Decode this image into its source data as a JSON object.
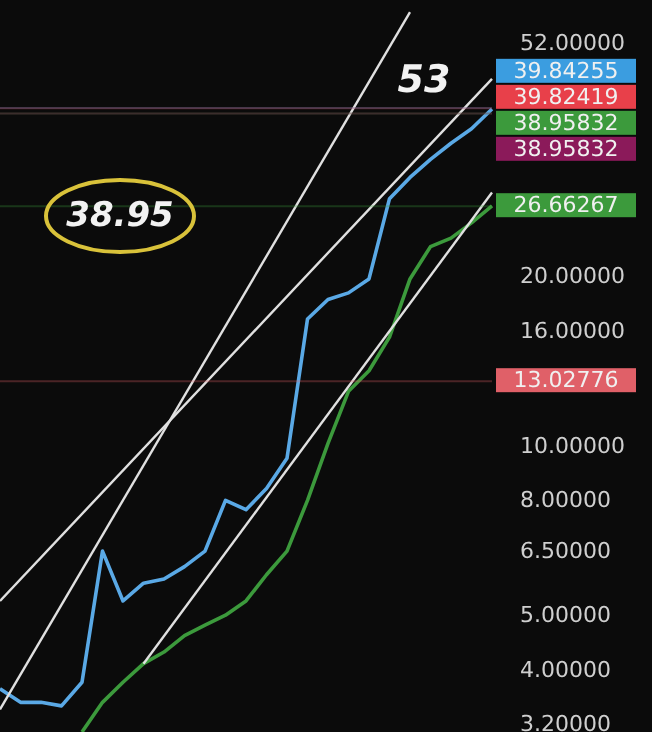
{
  "chart_data": {
    "type": "line",
    "categories": [
      null,
      null,
      null,
      null,
      null,
      null,
      null,
      null,
      null,
      null,
      null,
      null,
      null,
      null,
      null,
      null,
      null,
      null,
      null,
      null,
      null,
      null,
      null,
      null,
      null
    ],
    "series": [
      {
        "color": "#5aa9e6",
        "values": [
          3.7,
          3.5,
          3.5,
          3.45,
          3.8,
          6.5,
          5.3,
          5.7,
          5.8,
          6.1,
          6.5,
          8.0,
          7.7,
          8.4,
          9.5,
          16.8,
          18.2,
          18.7,
          19.8,
          27.5,
          30,
          32.3,
          34.5,
          36.6,
          39.7
        ]
      },
      {
        "color": "#3c9a3c",
        "values": [
          null,
          null,
          null,
          null,
          3.1,
          3.5,
          3.8,
          4.1,
          4.3,
          4.6,
          4.8,
          5.0,
          5.3,
          5.9,
          6.5,
          8.0,
          10.1,
          12.5,
          13.6,
          15.6,
          19.8,
          22.6,
          23.4,
          24.9,
          26.7
        ]
      },
      {
        "color": "#e0e0e0",
        "values": [
          3.4,
          null,
          null,
          null,
          null,
          null,
          null,
          null,
          null,
          null,
          null,
          null,
          null,
          null,
          null,
          null,
          null,
          null,
          null,
          null,
          59,
          null,
          null,
          null,
          null
        ]
      },
      {
        "color": "#e0e0e0",
        "values": [
          null,
          null,
          null,
          null,
          null,
          null,
          null,
          4.1,
          null,
          null,
          null,
          null,
          null,
          null,
          null,
          null,
          null,
          null,
          null,
          null,
          null,
          null,
          null,
          null,
          28.2
        ]
      },
      {
        "color": "#e0e0e0",
        "values": [
          5.3,
          null,
          null,
          null,
          null,
          null,
          null,
          null,
          null,
          null,
          null,
          null,
          null,
          null,
          null,
          null,
          null,
          null,
          null,
          null,
          null,
          null,
          null,
          null,
          44.9
        ]
      }
    ],
    "log": "y",
    "ylim": [
      3.1,
      62
    ],
    "yticks": [
      {
        "value": 3.2,
        "label": "3.20000"
      },
      {
        "value": 4,
        "label": "4.00000"
      },
      {
        "value": 5,
        "label": "5.00000"
      },
      {
        "value": 6.5,
        "label": "6.50000"
      },
      {
        "value": 8,
        "label": "8.00000"
      },
      {
        "value": 10,
        "label": "10.00000"
      },
      {
        "value": 16,
        "label": "16.00000"
      },
      {
        "value": 20,
        "label": "20.00000"
      },
      {
        "value": 52,
        "label": "52.00000"
      }
    ],
    "tick_labels": "y",
    "marker": "none",
    "line_style": "solid",
    "ref_lines": [
      {
        "axis": "y",
        "value": 39.84255,
        "label": "39.84255",
        "color": "#3b9de0"
      },
      {
        "axis": "y",
        "value": 39.82419,
        "label": "39.82419",
        "color": "#e8404a"
      },
      {
        "axis": "y",
        "value": 38.95832,
        "label": "38.95832",
        "color": "#3c9a3c"
      },
      {
        "axis": "y",
        "value": 38.95832,
        "label": "38.95832",
        "color": "#8b1a5a"
      },
      {
        "axis": "y",
        "value": 26.66267,
        "label": "26.66267",
        "color": "#3c9a3c"
      },
      {
        "axis": "y",
        "value": 13.02776,
        "label": "13.02776",
        "color": "#e06068"
      }
    ],
    "annotations": [
      "38.95",
      "53"
    ]
  }
}
